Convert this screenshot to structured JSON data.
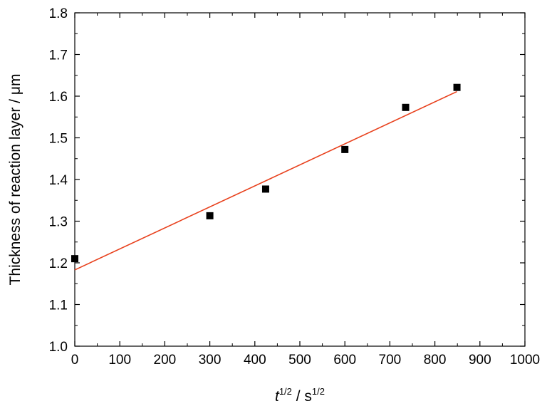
{
  "chart_data": {
    "type": "scatter",
    "xlabel_main": "t",
    "xlabel_sup": "1/2",
    "xlabel_sep": " / s",
    "xlabel_sup2": "1/2",
    "ylabel": "Thickness of reaction layer / μm",
    "xlim": [
      0,
      1000
    ],
    "ylim": [
      1.0,
      1.8
    ],
    "xticks": [
      "0",
      "100",
      "200",
      "300",
      "400",
      "500",
      "600",
      "700",
      "800",
      "900",
      "1000"
    ],
    "yticks": [
      "1.0",
      "1.1",
      "1.2",
      "1.3",
      "1.4",
      "1.5",
      "1.6",
      "1.7",
      "1.8"
    ],
    "series": [
      {
        "marker": "square",
        "color": "#000000",
        "points": [
          {
            "x": 0,
            "y": 1.21
          },
          {
            "x": 300,
            "y": 1.313
          },
          {
            "x": 424,
            "y": 1.377
          },
          {
            "x": 600,
            "y": 1.472
          },
          {
            "x": 735,
            "y": 1.573
          },
          {
            "x": 849,
            "y": 1.621
          }
        ]
      }
    ],
    "fit_line": {
      "color": "#e8401c",
      "x": [
        0,
        849
      ],
      "y": [
        1.183,
        1.611
      ]
    },
    "grid": false,
    "legend": "none"
  }
}
